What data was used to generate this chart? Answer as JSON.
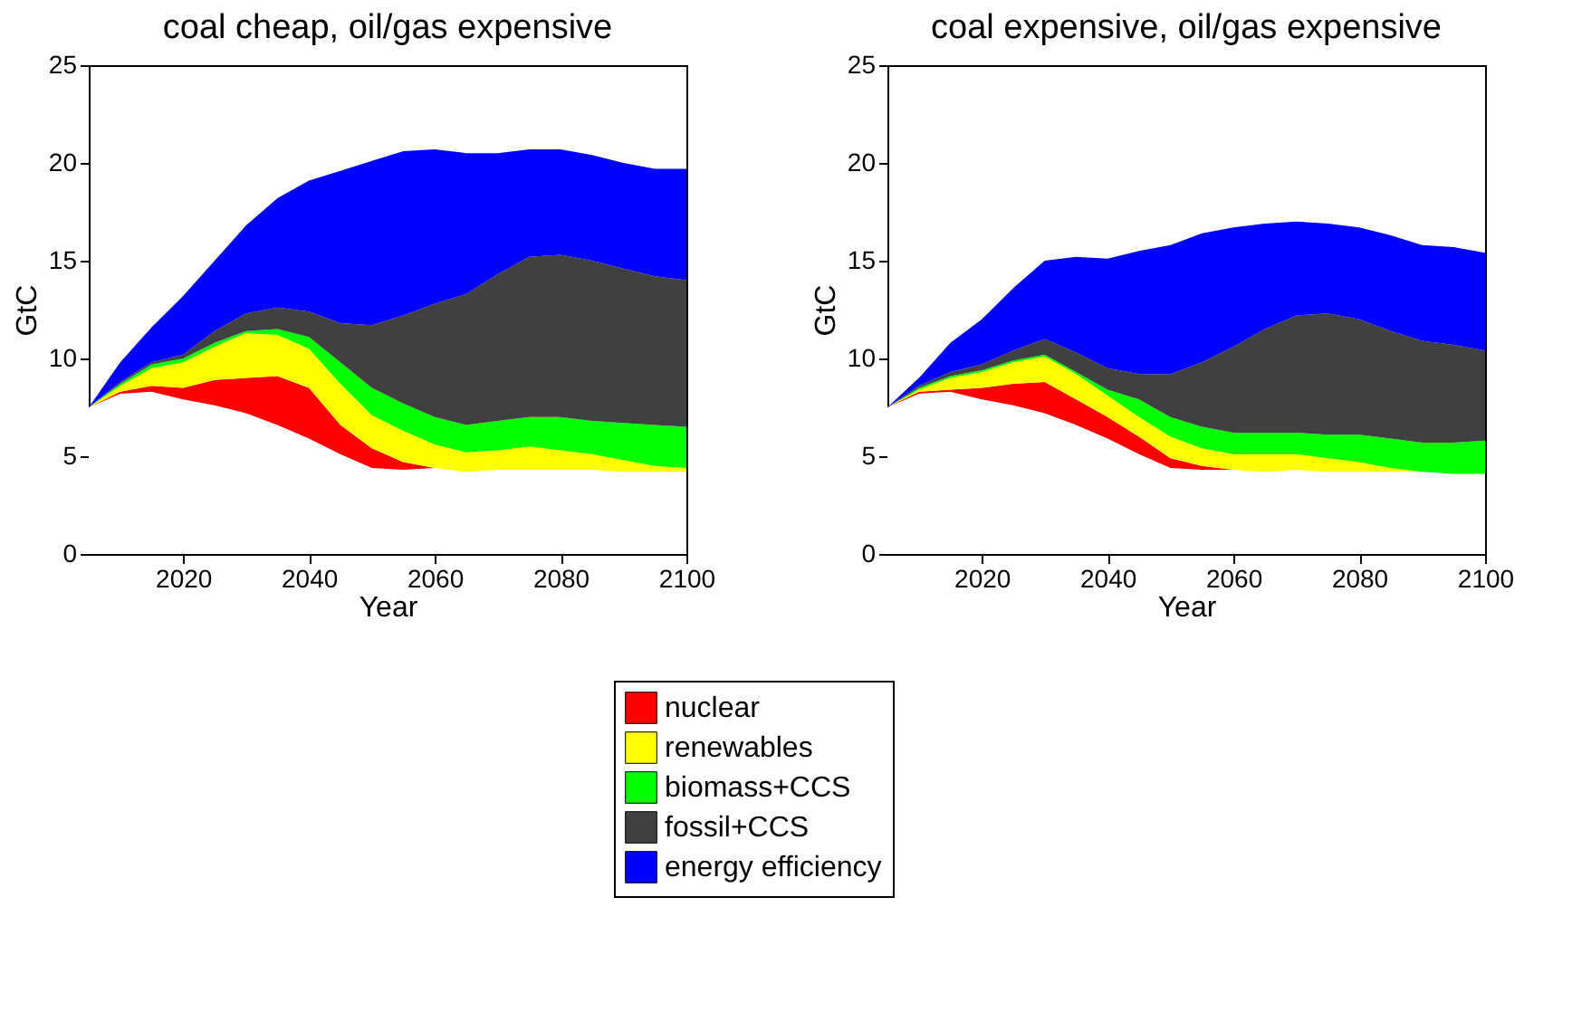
{
  "chart_data": [
    {
      "type": "area",
      "stacked": true,
      "title": "coal cheap, oil/gas expensive",
      "xlabel": "Year",
      "ylabel": "GtC",
      "xlim": [
        2005,
        2100
      ],
      "xticks": [
        2020,
        2040,
        2060,
        2080,
        2100
      ],
      "ylim": [
        0,
        25
      ],
      "yticks": [
        0,
        5,
        10,
        15,
        20,
        25
      ],
      "grid": false,
      "legend": "bottom",
      "x": [
        2005,
        2010,
        2015,
        2020,
        2025,
        2030,
        2035,
        2040,
        2045,
        2050,
        2055,
        2060,
        2065,
        2070,
        2075,
        2080,
        2085,
        2090,
        2095,
        2100
      ],
      "series": [
        {
          "color": "#ffffff",
          "values": [
            7.5,
            8.2,
            8.3,
            7.9,
            7.6,
            7.2,
            6.6,
            5.9,
            5.1,
            4.4,
            4.3,
            4.4,
            4.2,
            4.3,
            4.3,
            4.3,
            4.3,
            4.2,
            4.2,
            4.2
          ]
        },
        {
          "name": "nuclear",
          "color": "#ff0000",
          "values": [
            0,
            0.1,
            0.3,
            0.6,
            1.3,
            1.8,
            2.5,
            2.6,
            1.5,
            1.0,
            0.4,
            0,
            0,
            0,
            0,
            0,
            0,
            0,
            0,
            0
          ]
        },
        {
          "name": "renewables",
          "color": "#ffff00",
          "values": [
            0,
            0.3,
            0.9,
            1.3,
            1.7,
            2.3,
            2.1,
            2.0,
            2.1,
            1.7,
            1.6,
            1.2,
            1.0,
            1.0,
            1.2,
            1.0,
            0.8,
            0.6,
            0.3,
            0.2
          ]
        },
        {
          "name": "biomass+CCS",
          "color": "#00ff00",
          "values": [
            0,
            0.1,
            0.2,
            0.2,
            0.2,
            0.1,
            0.3,
            0.6,
            1.1,
            1.4,
            1.4,
            1.4,
            1.4,
            1.5,
            1.5,
            1.7,
            1.7,
            1.9,
            2.1,
            2.1
          ]
        },
        {
          "name": "fossil+CCS",
          "color": "#404040",
          "values": [
            0,
            0.1,
            0.1,
            0.2,
            0.6,
            0.9,
            1.1,
            1.3,
            2.0,
            3.2,
            4.5,
            5.8,
            6.7,
            7.5,
            8.2,
            8.3,
            8.2,
            7.9,
            7.6,
            7.5
          ]
        },
        {
          "name": "energy efficiency",
          "color": "#0000ff",
          "values": [
            0,
            1.0,
            1.8,
            3.0,
            3.6,
            4.5,
            5.6,
            6.7,
            7.8,
            8.4,
            8.4,
            7.9,
            7.2,
            6.2,
            5.5,
            5.4,
            5.4,
            5.4,
            5.5,
            5.7
          ]
        }
      ]
    },
    {
      "type": "area",
      "stacked": true,
      "title": "coal expensive, oil/gas expensive",
      "xlabel": "Year",
      "ylabel": "GtC",
      "xlim": [
        2005,
        2100
      ],
      "xticks": [
        2020,
        2040,
        2060,
        2080,
        2100
      ],
      "ylim": [
        0,
        25
      ],
      "yticks": [
        0,
        5,
        10,
        15,
        20,
        25
      ],
      "grid": false,
      "legend": "bottom",
      "x": [
        2005,
        2010,
        2015,
        2020,
        2025,
        2030,
        2035,
        2040,
        2045,
        2050,
        2055,
        2060,
        2065,
        2070,
        2075,
        2080,
        2085,
        2090,
        2095,
        2100
      ],
      "series": [
        {
          "color": "#ffffff",
          "values": [
            7.5,
            8.2,
            8.3,
            7.9,
            7.6,
            7.2,
            6.6,
            5.9,
            5.1,
            4.4,
            4.3,
            4.3,
            4.2,
            4.3,
            4.2,
            4.2,
            4.2,
            4.2,
            4.1,
            4.1
          ]
        },
        {
          "name": "nuclear",
          "color": "#ff0000",
          "values": [
            0,
            0.1,
            0.1,
            0.6,
            1.1,
            1.6,
            1.3,
            1.1,
            0.9,
            0.5,
            0.2,
            0,
            0,
            0,
            0,
            0,
            0,
            0,
            0,
            0
          ]
        },
        {
          "name": "renewables",
          "color": "#ffff00",
          "values": [
            0,
            0.1,
            0.6,
            0.8,
            1.1,
            1.3,
            1.3,
            1.1,
            1.0,
            1.1,
            0.9,
            0.8,
            0.9,
            0.8,
            0.7,
            0.5,
            0.2,
            0,
            0,
            0
          ]
        },
        {
          "name": "biomass+CCS",
          "color": "#00ff00",
          "values": [
            0,
            0.1,
            0.1,
            0.1,
            0.1,
            0.1,
            0.1,
            0.3,
            0.9,
            1.0,
            1.1,
            1.1,
            1.1,
            1.1,
            1.2,
            1.4,
            1.5,
            1.5,
            1.6,
            1.7
          ]
        },
        {
          "name": "fossil+CCS",
          "color": "#404040",
          "values": [
            0,
            0.1,
            0.2,
            0.3,
            0.5,
            0.8,
            1.0,
            1.1,
            1.3,
            2.2,
            3.3,
            4.4,
            5.3,
            6.0,
            6.2,
            5.9,
            5.5,
            5.2,
            5.0,
            4.6
          ]
        },
        {
          "name": "energy efficiency",
          "color": "#0000ff",
          "values": [
            0,
            0.4,
            1.5,
            2.3,
            3.2,
            4.0,
            4.9,
            5.6,
            6.3,
            6.6,
            6.6,
            6.1,
            5.4,
            4.8,
            4.6,
            4.7,
            4.9,
            4.9,
            5.0,
            5.0
          ]
        }
      ]
    }
  ]
}
